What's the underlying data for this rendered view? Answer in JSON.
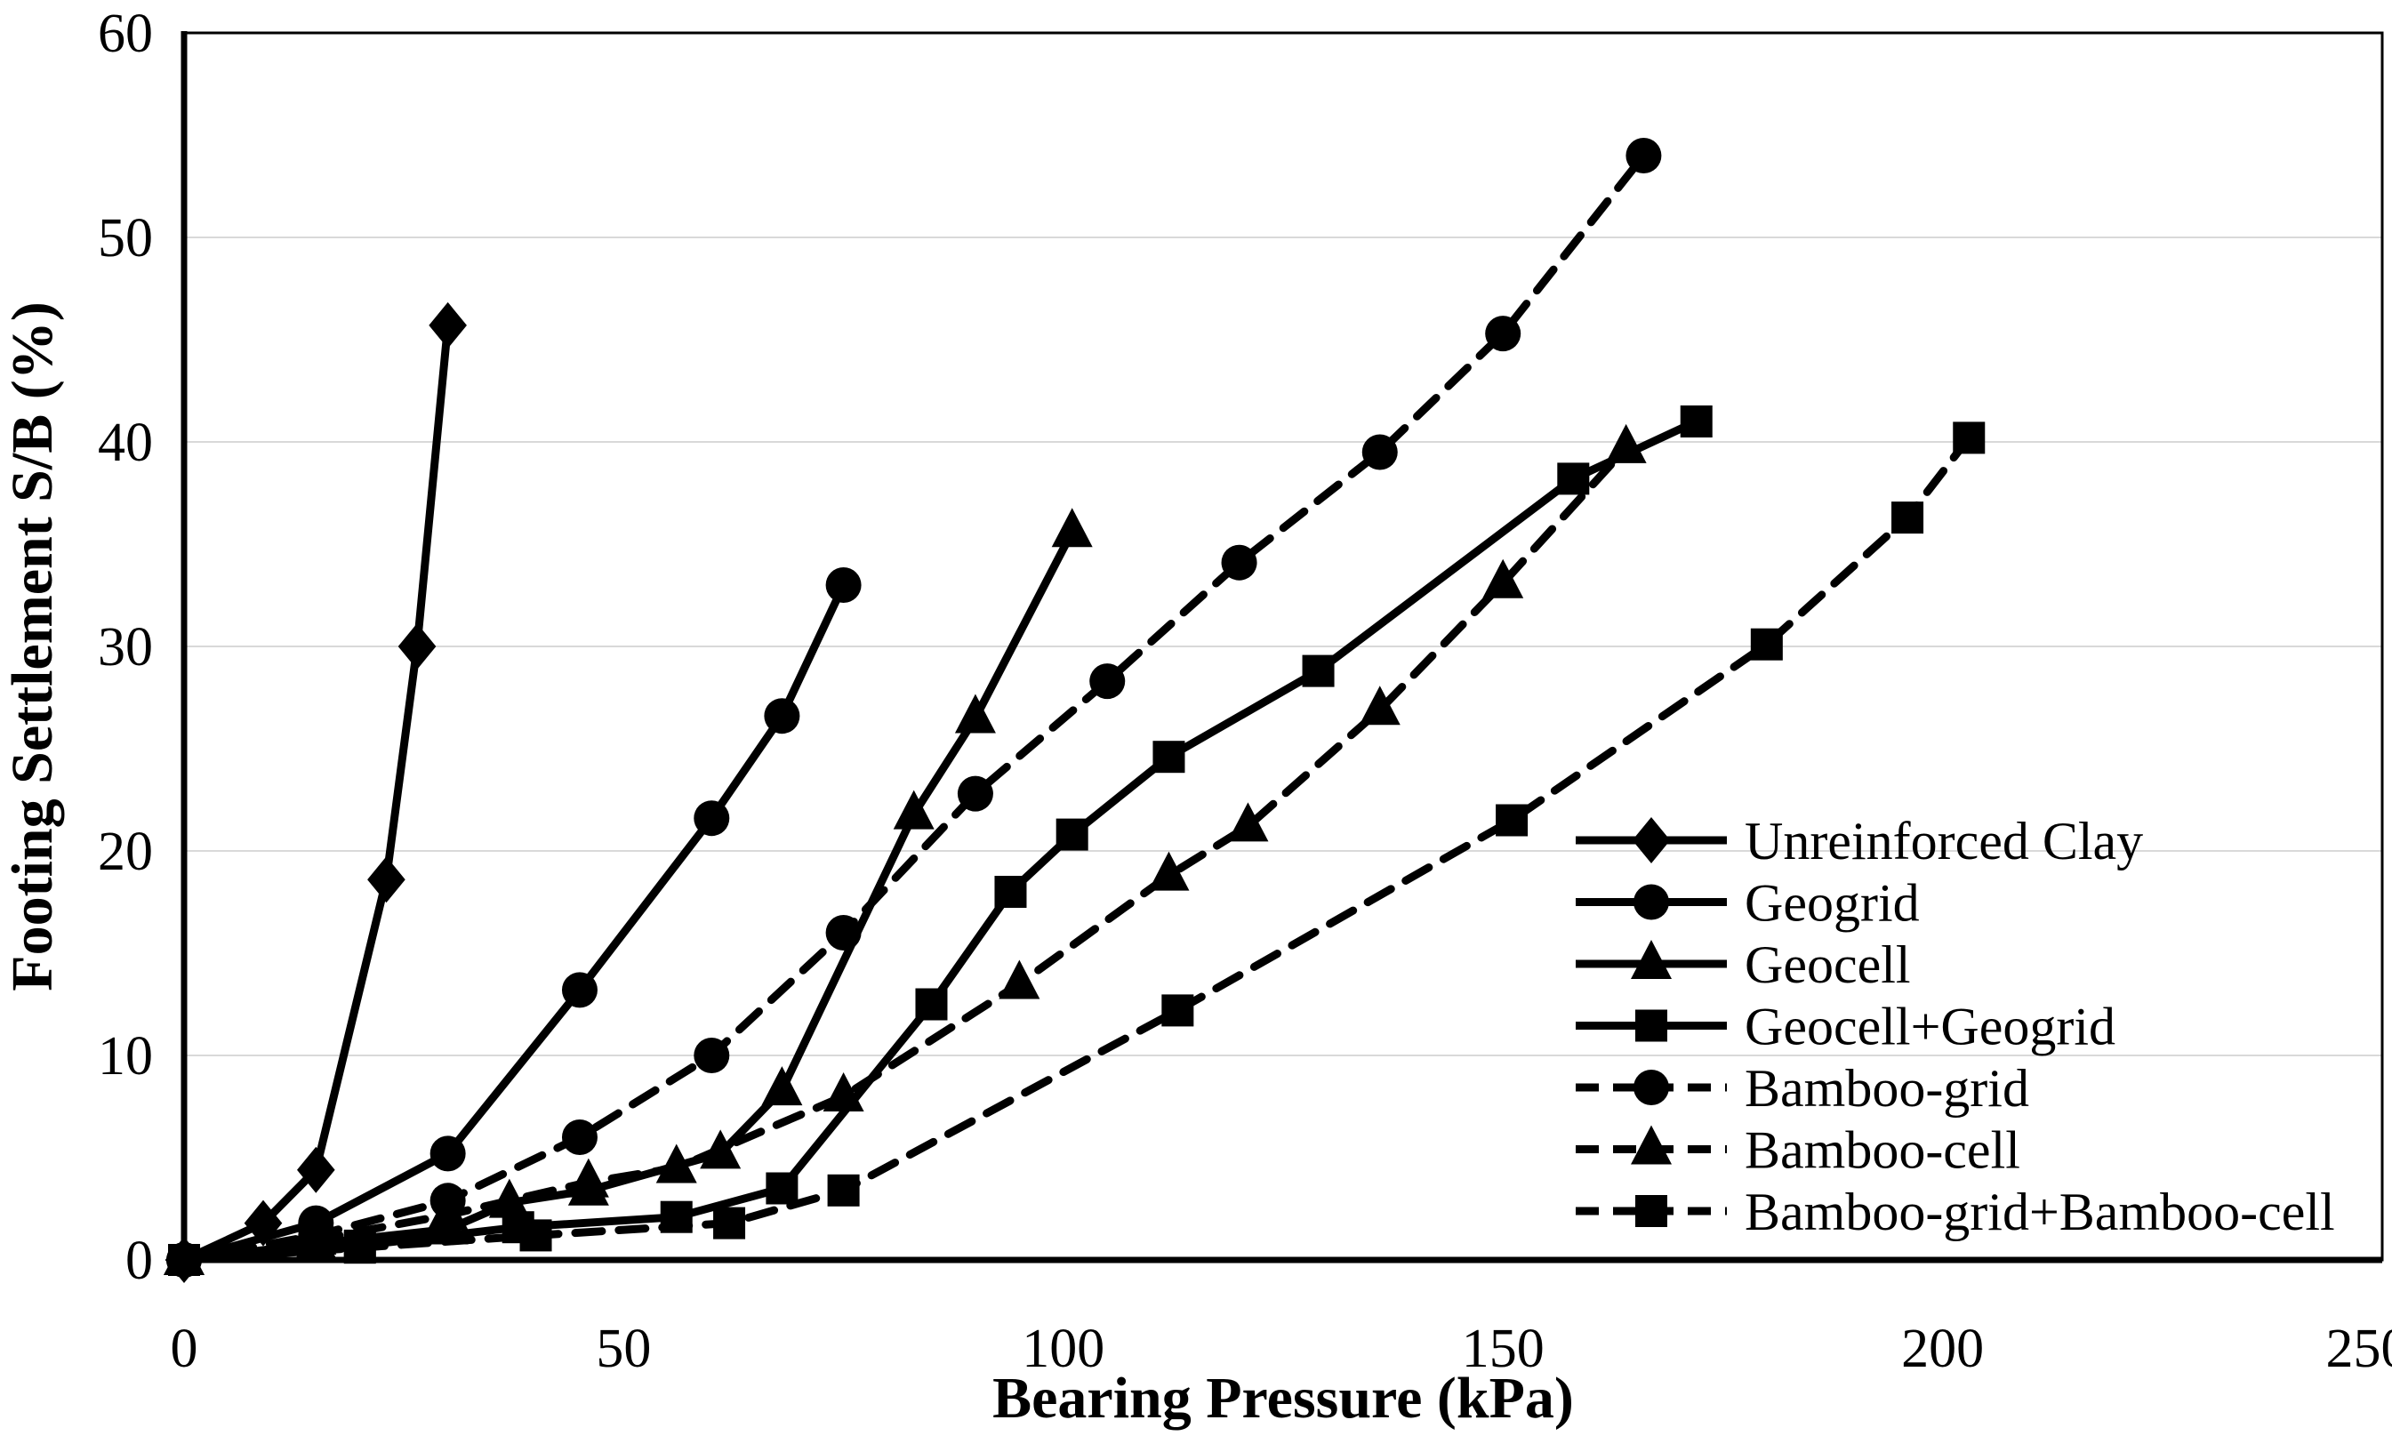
{
  "chart_data": {
    "type": "line",
    "title": "",
    "xlabel": "Bearing Pressure (kPa)",
    "ylabel": "Footing Settlement S/B (%)",
    "xlim": [
      0,
      250
    ],
    "ylim": [
      0,
      60
    ],
    "x_ticks": [
      0,
      50,
      100,
      150,
      200,
      250
    ],
    "y_ticks": [
      0,
      10,
      20,
      30,
      40,
      50,
      60
    ],
    "grid": "horizontal",
    "legend_position": "inside-right",
    "colors": {
      "series": "#000000",
      "grid": "#d9d9d9",
      "background": "#ffffff",
      "border": "#000000"
    },
    "series": [
      {
        "name": "Unreinforced Clay",
        "marker": "diamond",
        "line": "solid",
        "points": [
          [
            0,
            0
          ],
          [
            9,
            1.8
          ],
          [
            15,
            4.4
          ],
          [
            23,
            18.6
          ],
          [
            26.5,
            30
          ],
          [
            30,
            45.7
          ]
        ]
      },
      {
        "name": "Geogrid",
        "marker": "circle",
        "line": "solid",
        "points": [
          [
            0,
            0
          ],
          [
            15,
            1.8
          ],
          [
            30,
            5.2
          ],
          [
            45,
            13.2
          ],
          [
            60,
            21.6
          ],
          [
            68,
            26.6
          ],
          [
            75,
            33
          ]
        ]
      },
      {
        "name": "Geocell",
        "marker": "triangle",
        "line": "solid",
        "points": [
          [
            0,
            0
          ],
          [
            15,
            0.8
          ],
          [
            30,
            1.5
          ],
          [
            37,
            2.8
          ],
          [
            46,
            3.4
          ],
          [
            61,
            5.2
          ],
          [
            68,
            8.3
          ],
          [
            83,
            21.8
          ],
          [
            90,
            26.5
          ],
          [
            101,
            35.6
          ]
        ]
      },
      {
        "name": "Geocell+Geogrid",
        "marker": "square",
        "line": "solid",
        "points": [
          [
            0,
            0
          ],
          [
            20,
            0.7
          ],
          [
            38,
            1.6
          ],
          [
            56,
            2.1
          ],
          [
            68,
            3.5
          ],
          [
            85,
            12.5
          ],
          [
            94,
            18
          ],
          [
            101,
            20.8
          ],
          [
            112,
            24.6
          ],
          [
            129,
            28.8
          ],
          [
            158,
            38.2
          ],
          [
            172,
            41
          ]
        ]
      },
      {
        "name": "Bamboo-grid",
        "marker": "circle",
        "line": "dashed",
        "points": [
          [
            0,
            0
          ],
          [
            15,
            1.2
          ],
          [
            30,
            2.9
          ],
          [
            45,
            6
          ],
          [
            60,
            10
          ],
          [
            75,
            16
          ],
          [
            90,
            22.8
          ],
          [
            105,
            28.3
          ],
          [
            120,
            34.1
          ],
          [
            136,
            39.5
          ],
          [
            150,
            45.3
          ],
          [
            166,
            54
          ]
        ]
      },
      {
        "name": "Bamboo-cell",
        "marker": "triangle",
        "line": "dashed",
        "points": [
          [
            0,
            0
          ],
          [
            15,
            1
          ],
          [
            30,
            2.2
          ],
          [
            46,
            3.8
          ],
          [
            56,
            4.5
          ],
          [
            75,
            8
          ],
          [
            95,
            13.5
          ],
          [
            112,
            18.8
          ],
          [
            121,
            21.2
          ],
          [
            136,
            26.9
          ],
          [
            150,
            33.1
          ],
          [
            164,
            39.7
          ]
        ]
      },
      {
        "name": "Bamboo-grid+Bamboo-cell",
        "marker": "square",
        "line": "dashed",
        "points": [
          [
            0,
            0
          ],
          [
            20,
            0.6
          ],
          [
            40,
            1.2
          ],
          [
            62,
            1.8
          ],
          [
            75,
            3.4
          ],
          [
            113,
            12.2
          ],
          [
            151,
            21.5
          ],
          [
            180,
            30.1
          ],
          [
            196,
            36.3
          ],
          [
            203,
            40.2
          ]
        ]
      }
    ]
  }
}
